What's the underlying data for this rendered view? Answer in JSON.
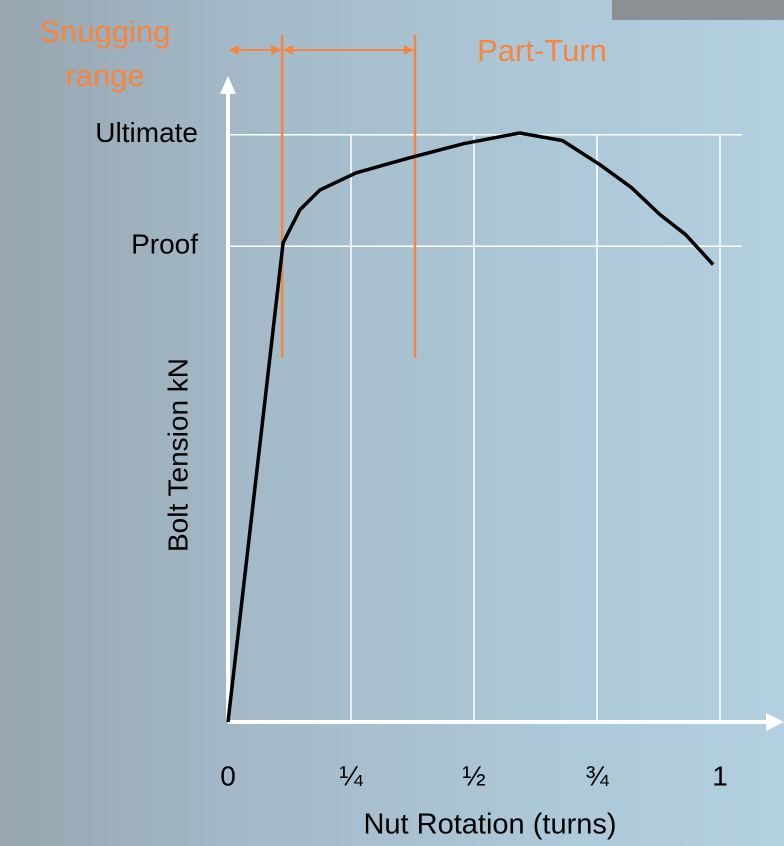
{
  "chart_data": {
    "type": "line",
    "x_label": "Nut Rotation (turns)",
    "y_label": "Bolt Tension kN",
    "xlim": [
      0,
      1
    ],
    "ylim": [
      0,
      1.1
    ],
    "xticks": [
      0,
      {
        "value": 0.25,
        "label": "¼"
      },
      {
        "value": 0.5,
        "label": "½"
      },
      {
        "value": 0.75,
        "label": "¾"
      },
      1
    ],
    "yticks": [
      {
        "value": 0.81,
        "label": "Proof"
      },
      {
        "value": 1,
        "label": "Ultimate"
      }
    ],
    "grid": true,
    "series": [
      {
        "color": "#000000",
        "x": [
          0,
          0.112,
          0.146,
          0.187,
          0.26,
          0.37,
          0.48,
          0.593,
          0.68,
          0.756,
          0.82,
          0.878,
          0.93,
          0.986
        ],
        "values": [
          0,
          0.816,
          0.872,
          0.906,
          0.935,
          0.961,
          0.985,
          1.003,
          0.99,
          0.949,
          0.91,
          0.864,
          0.83,
          0.779
        ]
      }
    ],
    "ranges": [
      {
        "label": "Snugging range",
        "from": 0,
        "to": 0.11,
        "color": "#f7843f"
      },
      {
        "label": "Part-Turn",
        "from": 0.11,
        "to": 0.38,
        "color": "#f7843f"
      }
    ]
  }
}
